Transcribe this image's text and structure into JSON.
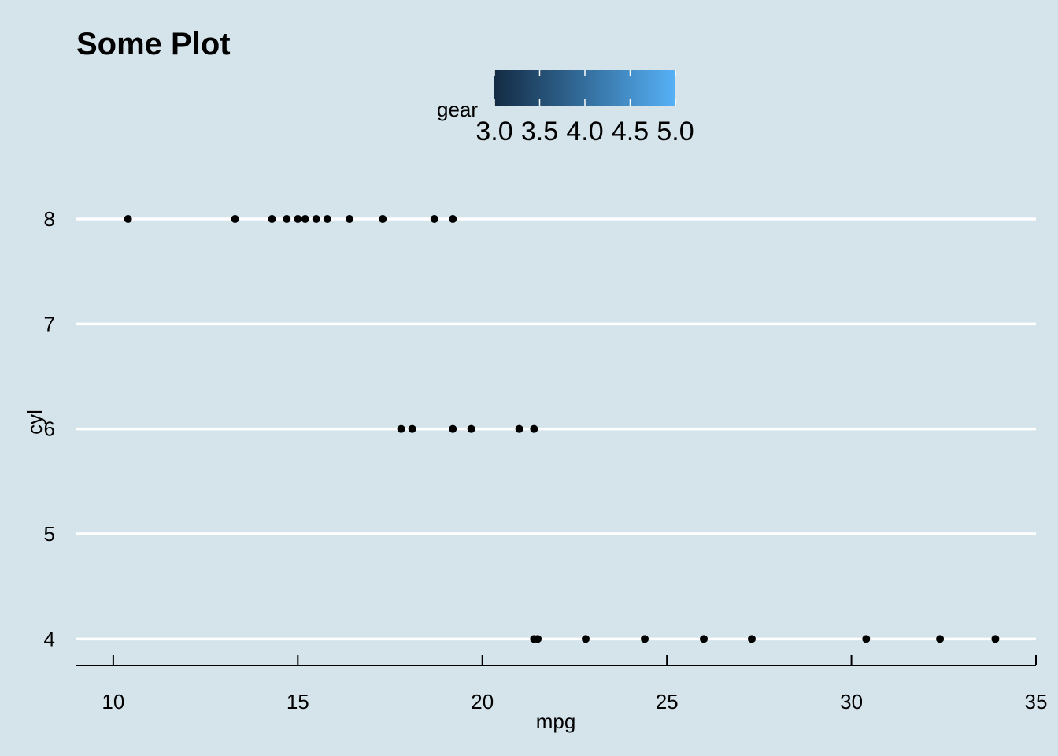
{
  "chart_data": {
    "type": "scatter",
    "title": "Some Plot",
    "xlabel": "mpg",
    "ylabel": "cyl",
    "xlim": [
      9,
      35
    ],
    "ylim": [
      3.8,
      8.3
    ],
    "x_ticks": [
      10,
      15,
      20,
      25,
      30,
      35
    ],
    "y_ticks": [
      4,
      5,
      6,
      7,
      8
    ],
    "grid": "horizontal major lines",
    "point_color": "#000000",
    "background_color": "#d5e4eb",
    "legend": {
      "title": "gear",
      "position": "top",
      "type": "colorbar",
      "range": [
        3,
        5
      ],
      "ticks": [
        "3.0",
        "3.5",
        "4.0",
        "4.5",
        "5.0"
      ],
      "color_low": "#132b43",
      "color_high": "#56b1f7"
    },
    "points": [
      {
        "x": 10.4,
        "y": 8
      },
      {
        "x": 13.3,
        "y": 8
      },
      {
        "x": 14.3,
        "y": 8
      },
      {
        "x": 14.7,
        "y": 8
      },
      {
        "x": 15.0,
        "y": 8
      },
      {
        "x": 15.2,
        "y": 8
      },
      {
        "x": 15.5,
        "y": 8
      },
      {
        "x": 15.8,
        "y": 8
      },
      {
        "x": 16.4,
        "y": 8
      },
      {
        "x": 17.3,
        "y": 8
      },
      {
        "x": 18.7,
        "y": 8
      },
      {
        "x": 19.2,
        "y": 8
      },
      {
        "x": 17.8,
        "y": 6
      },
      {
        "x": 18.1,
        "y": 6
      },
      {
        "x": 19.2,
        "y": 6
      },
      {
        "x": 19.7,
        "y": 6
      },
      {
        "x": 21.0,
        "y": 6
      },
      {
        "x": 21.4,
        "y": 6
      },
      {
        "x": 21.4,
        "y": 4
      },
      {
        "x": 21.5,
        "y": 4
      },
      {
        "x": 22.8,
        "y": 4
      },
      {
        "x": 24.4,
        "y": 4
      },
      {
        "x": 26.0,
        "y": 4
      },
      {
        "x": 27.3,
        "y": 4
      },
      {
        "x": 30.4,
        "y": 4
      },
      {
        "x": 32.4,
        "y": 4
      },
      {
        "x": 33.9,
        "y": 4
      }
    ]
  }
}
